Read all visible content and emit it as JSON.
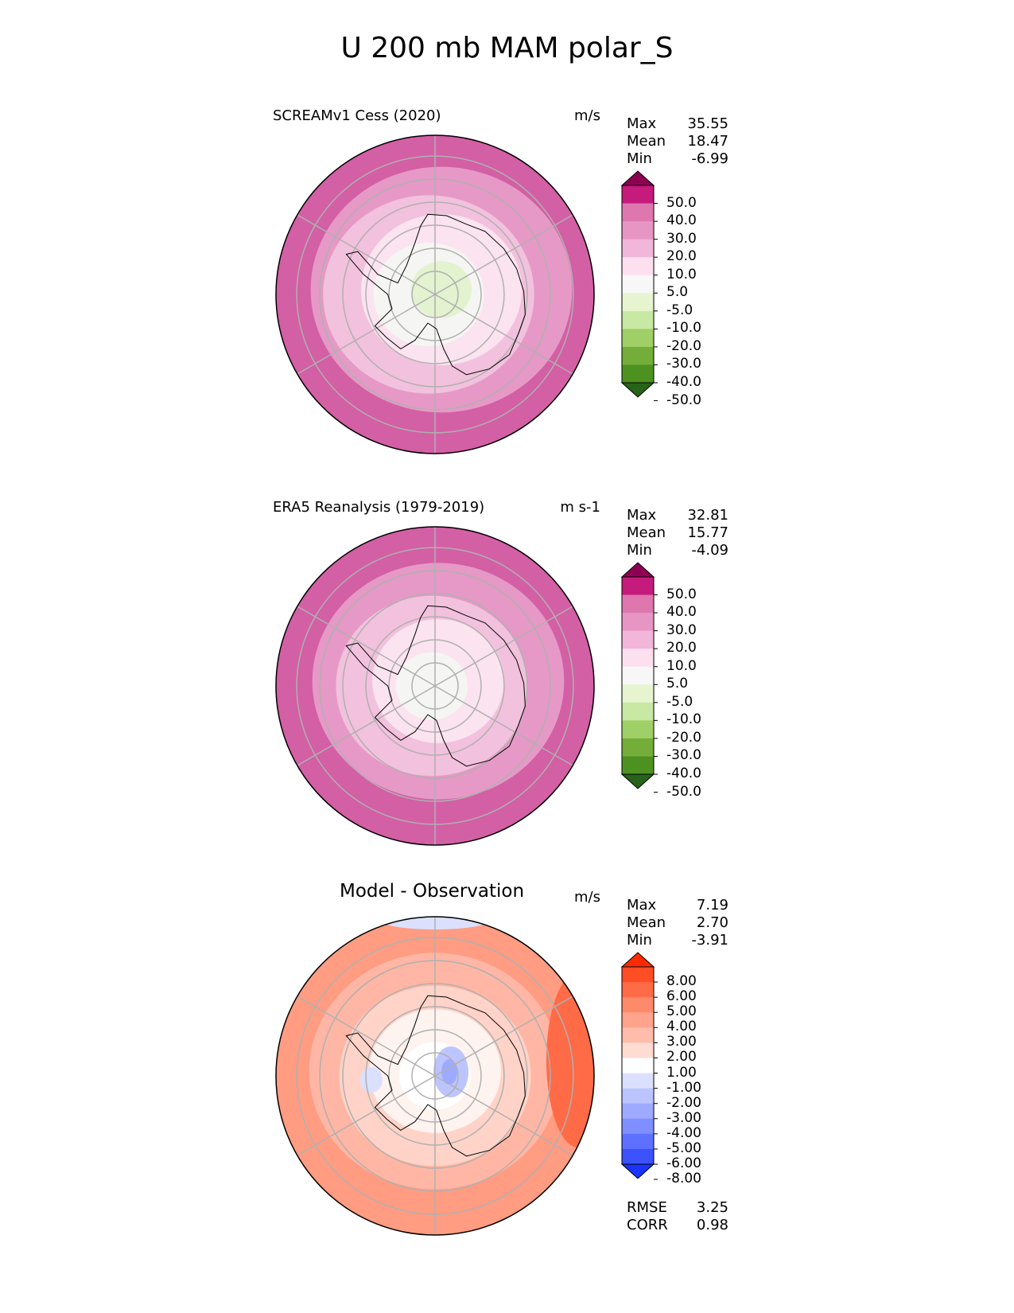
{
  "figure_title": "U 200 mb MAM polar_S",
  "chart_data": [
    {
      "type": "heatmap",
      "projection": "south-polar-stereographic",
      "title": "SCREAMv1 Cess (2020)",
      "units": "m/s",
      "stats": {
        "max_label": "Max",
        "max": "35.55",
        "mean_label": "Mean",
        "mean": "18.47",
        "min_label": "Min",
        "min": "-6.99"
      },
      "colorbar": {
        "levels": [
          "50.0",
          "40.0",
          "30.0",
          "20.0",
          "10.0",
          "5.0",
          "-5.0",
          "-10.0",
          "-20.0",
          "-30.0",
          "-40.0",
          "-50.0"
        ],
        "colors": [
          "#8e0152",
          "#c51b7d",
          "#de77ae",
          "#e796c4",
          "#f1b6da",
          "#fde0ef",
          "#f7f7f7",
          "#e6f5d0",
          "#c7e9a3",
          "#9fcf67",
          "#74ad3a",
          "#4d9221",
          "#276419"
        ]
      },
      "field_rings": [
        {
          "level_index": 2,
          "color": "#d35fa5"
        },
        {
          "level_index": 3,
          "color": "#e699c6"
        },
        {
          "level_index": 4,
          "color": "#f2c1dd"
        },
        {
          "level_index": 5,
          "color": "#fbe3ef"
        },
        {
          "level_index": 6,
          "color": "#f5f5f3"
        },
        {
          "level_index": 7,
          "color": "#e3f2cf"
        }
      ]
    },
    {
      "type": "heatmap",
      "projection": "south-polar-stereographic",
      "title": "ERA5 Reanalysis (1979-2019)",
      "units": "m s-1",
      "stats": {
        "max_label": "Max",
        "max": "32.81",
        "mean_label": "Mean",
        "mean": "15.77",
        "min_label": "Min",
        "min": "-4.09"
      },
      "colorbar": {
        "levels": [
          "50.0",
          "40.0",
          "30.0",
          "20.0",
          "10.0",
          "5.0",
          "-5.0",
          "-10.0",
          "-20.0",
          "-30.0",
          "-40.0",
          "-50.0"
        ],
        "colors": [
          "#8e0152",
          "#c51b7d",
          "#de77ae",
          "#e796c4",
          "#f1b6da",
          "#fde0ef",
          "#f7f7f7",
          "#e6f5d0",
          "#c7e9a3",
          "#9fcf67",
          "#74ad3a",
          "#4d9221",
          "#276419"
        ]
      },
      "field_rings": [
        {
          "level_index": 2,
          "color": "#d35fa5"
        },
        {
          "level_index": 3,
          "color": "#e699c6"
        },
        {
          "level_index": 4,
          "color": "#f2c1dd"
        },
        {
          "level_index": 5,
          "color": "#fbe3ef"
        },
        {
          "level_index": 6,
          "color": "#f5f5f3"
        }
      ]
    },
    {
      "type": "heatmap",
      "projection": "south-polar-stereographic",
      "title": "Model - Observation",
      "units": "m/s",
      "stats": {
        "max_label": "Max",
        "max": "7.19",
        "mean_label": "Mean",
        "mean": "2.70",
        "min_label": "Min",
        "min": "-3.91"
      },
      "colorbar": {
        "levels": [
          "8.00",
          "6.00",
          "5.00",
          "4.00",
          "3.00",
          "2.00",
          "1.00",
          "-1.00",
          "-2.00",
          "-3.00",
          "-4.00",
          "-5.00",
          "-6.00",
          "-8.00"
        ],
        "colors": [
          "#ff2a00",
          "#ff4d26",
          "#ff6b47",
          "#ff8a6b",
          "#ffa38c",
          "#ffbcab",
          "#ffdcd2",
          "#ffffff",
          "#dbe0ff",
          "#bcc5ff",
          "#9eaaff",
          "#7f8fff",
          "#5e70ff",
          "#3d52ff",
          "#1a33ff"
        ]
      },
      "metrics": {
        "rmse_label": "RMSE",
        "rmse": "3.25",
        "corr_label": "CORR",
        "corr": "0.98"
      },
      "field_rings": [
        {
          "level_index": 3,
          "color": "#ff9c82"
        },
        {
          "level_index": 4,
          "color": "#ffb6a4"
        },
        {
          "level_index": 5,
          "color": "#ffd3c8"
        },
        {
          "level_index": 6,
          "color": "#fff3ef"
        },
        {
          "level_index": 7,
          "color": "#ffffff"
        }
      ]
    }
  ]
}
